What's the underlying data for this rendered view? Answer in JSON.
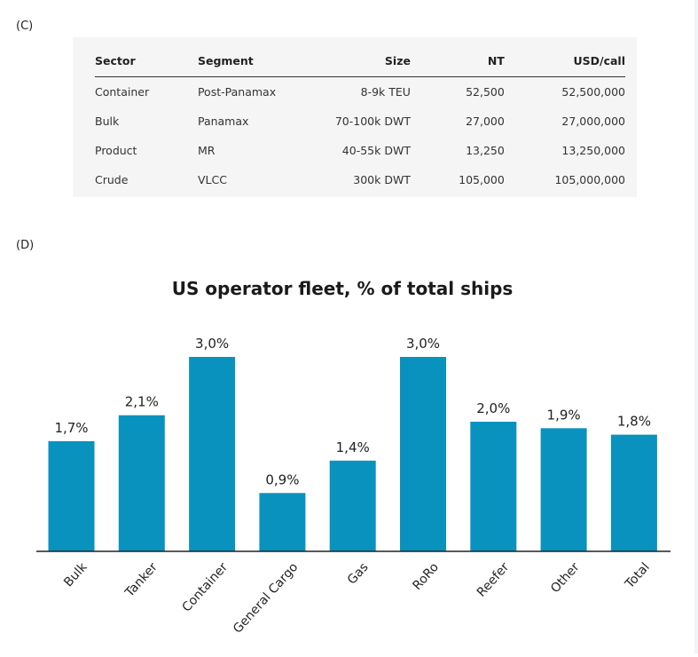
{
  "panel_c_label": "(C)",
  "panel_d_label": "(D)",
  "table": {
    "headers": {
      "sector": "Sector",
      "segment": "Segment",
      "size": "Size",
      "nt": "NT",
      "usd": "USD/call"
    },
    "rows": [
      {
        "sector": "Container",
        "segment": "Post-Panamax",
        "size": "8-9k TEU",
        "nt": "52,500",
        "usd": "52,500,000"
      },
      {
        "sector": "Bulk",
        "segment": "Panamax",
        "size": "70-100k DWT",
        "nt": "27,000",
        "usd": "27,000,000"
      },
      {
        "sector": "Product",
        "segment": "MR",
        "size": "40-55k DWT",
        "nt": "13,250",
        "usd": "13,250,000"
      },
      {
        "sector": "Crude",
        "segment": "VLCC",
        "size": "300k DWT",
        "nt": "105,000",
        "usd": "105,000,000"
      }
    ]
  },
  "chart_data": {
    "type": "bar",
    "title": "US operator fleet, % of total ships",
    "categories": [
      "Bulk",
      "Tanker",
      "Container",
      "General Cargo",
      "Gas",
      "RoRo",
      "Reefer",
      "Other",
      "Total"
    ],
    "values": [
      1.7,
      2.1,
      3.0,
      0.9,
      1.4,
      3.0,
      2.0,
      1.9,
      1.8
    ],
    "data_labels": [
      "1,7%",
      "2,1%",
      "3,0%",
      "0,9%",
      "1,4%",
      "3,0%",
      "2,0%",
      "1,9%",
      "1,8%"
    ],
    "xlabel": "",
    "ylabel": "",
    "ylim": [
      0,
      3.0
    ],
    "grid": false,
    "bar_color": "#0a92bf"
  }
}
